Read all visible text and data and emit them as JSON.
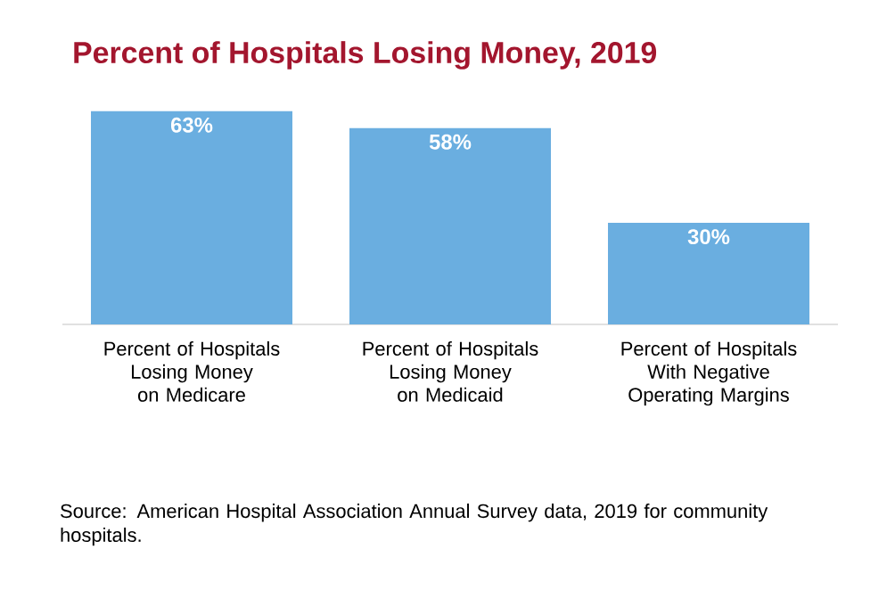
{
  "chart_data": {
    "type": "bar",
    "title": "Percent of Hospitals Losing Money, 2019",
    "categories": [
      "Percent of Hospitals Losing Money on Medicare",
      "Percent of Hospitals Losing Money on Medicaid",
      "Percent of Hospitals With Negative Operating Margins"
    ],
    "values": [
      63,
      58,
      30
    ],
    "value_labels": [
      "63%",
      "58%",
      "30%"
    ],
    "color": "#6aaee0",
    "annotations": [
      "Source: American Hospital Association Annual Survey data, 2019 for community hospitals."
    ]
  }
}
